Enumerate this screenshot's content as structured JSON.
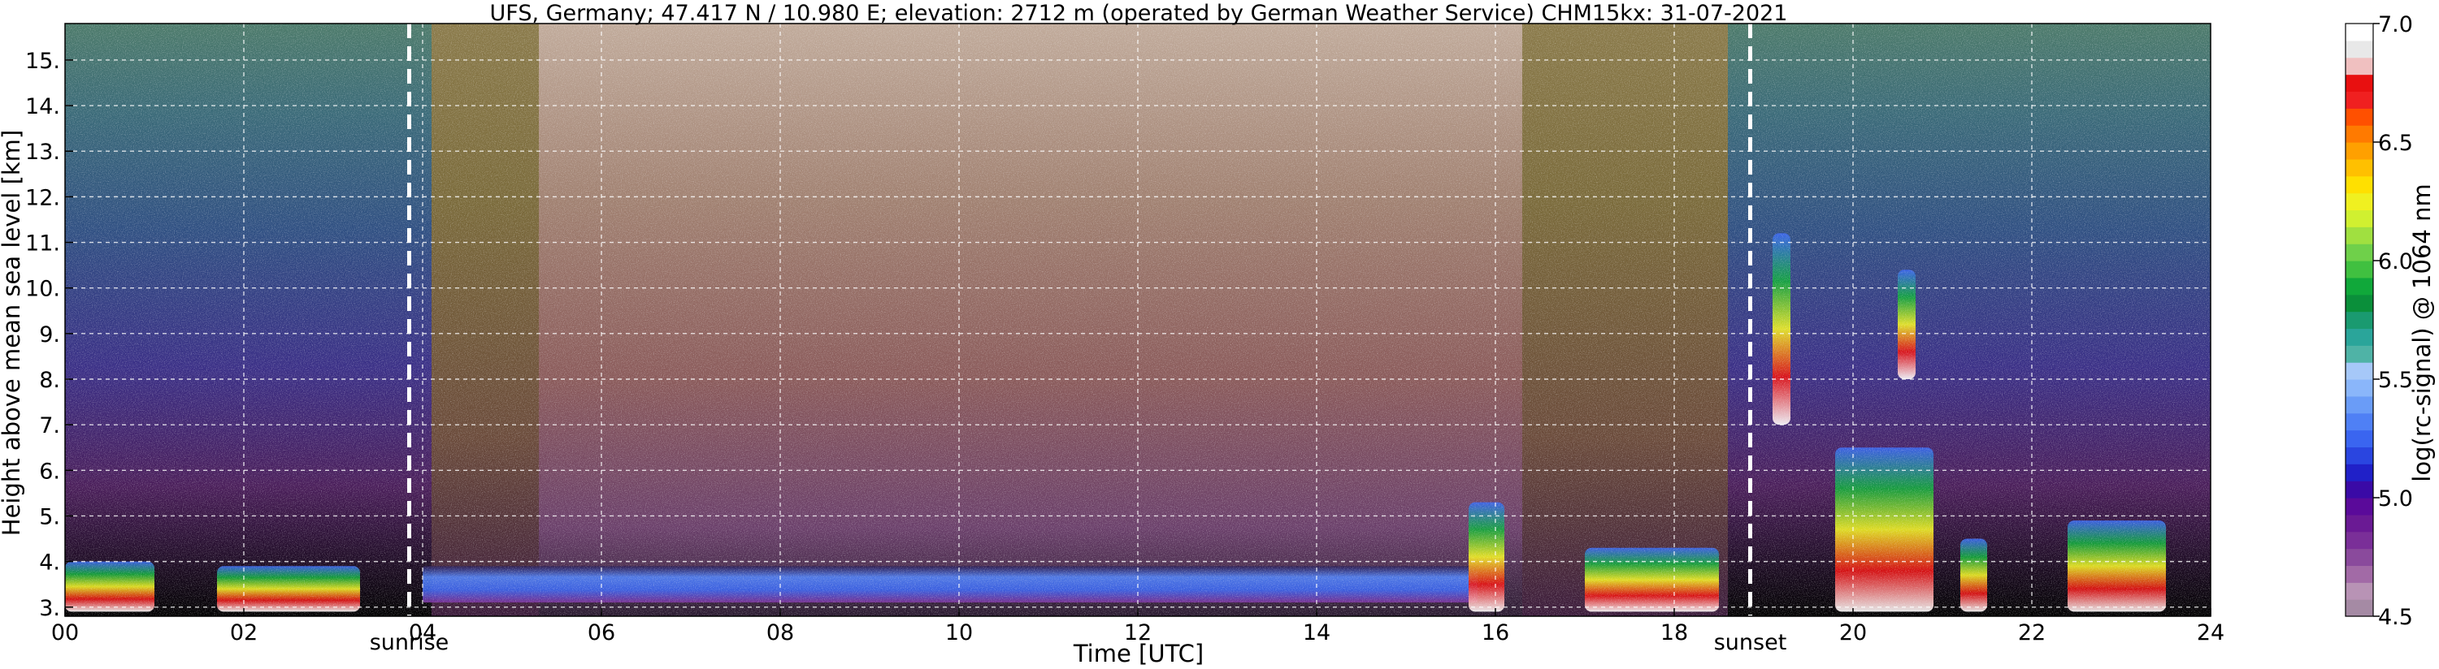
{
  "chart_data": {
    "type": "heatmap",
    "title": "UFS, Germany; 47.417 N / 10.980 E; elevation: 2712 m  (operated by German Weather Service)    CHM15kx: 31-07-2021",
    "xlabel": "Time [UTC]",
    "ylabel": "Height above mean sea level [km]",
    "xlim": [
      0,
      24
    ],
    "ylim": [
      2.8,
      15.8
    ],
    "x_ticks": [
      "00",
      "02",
      "04",
      "06",
      "08",
      "10",
      "12",
      "14",
      "16",
      "18",
      "20",
      "22",
      "24"
    ],
    "x_tick_values": [
      0,
      2,
      4,
      6,
      8,
      10,
      12,
      14,
      16,
      18,
      20,
      22,
      24
    ],
    "y_ticks": [
      "3.",
      "4.",
      "5.",
      "6.",
      "7.",
      "8.",
      "9.",
      "10.",
      "11.",
      "12.",
      "13.",
      "14.",
      "15."
    ],
    "y_tick_values": [
      3,
      4,
      5,
      6,
      7,
      8,
      9,
      10,
      11,
      12,
      13,
      14,
      15
    ],
    "grid": true,
    "events": [
      {
        "label": "sunrise",
        "time": 3.85
      },
      {
        "label": "sunset",
        "time": 18.85
      }
    ],
    "colorbar": {
      "label": "log(rc-signal) @ 1064 nm",
      "range": [
        4.5,
        7.0
      ],
      "ticks": [
        "4.5",
        "5.0",
        "5.5",
        "6.0",
        "6.5",
        "7.0"
      ],
      "tick_values": [
        4.5,
        5.0,
        5.5,
        6.0,
        6.5,
        7.0
      ],
      "colors": [
        "#a58aa4",
        "#b893b5",
        "#a26aa6",
        "#8a4a9c",
        "#7a2f98",
        "#6a1a94",
        "#5a0a9a",
        "#3a0aa6",
        "#2020c8",
        "#2a45e0",
        "#3a65f0",
        "#4f80f5",
        "#6a9cf7",
        "#8ab6fa",
        "#a6c8f8",
        "#4fb3a6",
        "#2aa59a",
        "#1a9a70",
        "#0a8f3a",
        "#10a83a",
        "#40c040",
        "#6fd04a",
        "#a0e040",
        "#d0f030",
        "#f0f020",
        "#ffe000",
        "#ffc000",
        "#ffa000",
        "#ff7a00",
        "#ff5000",
        "#f02020",
        "#e81010",
        "#f0c0c0",
        "#e8e8e8",
        "#ffffff"
      ]
    },
    "features": [
      {
        "kind": "cloud",
        "t0": 0.0,
        "t1": 1.0,
        "h0": 2.9,
        "h1": 4.0
      },
      {
        "kind": "cloud",
        "t0": 1.7,
        "t1": 3.3,
        "h0": 2.9,
        "h1": 3.9
      },
      {
        "kind": "aerosol_layer",
        "t0": 4.0,
        "t1": 15.8,
        "h0": 3.1,
        "h1": 3.9
      },
      {
        "kind": "cloud",
        "t0": 15.7,
        "t1": 16.1,
        "h0": 2.9,
        "h1": 5.3
      },
      {
        "kind": "cloud",
        "t0": 17.0,
        "t1": 18.5,
        "h0": 2.9,
        "h1": 4.3
      },
      {
        "kind": "cloud",
        "t0": 19.1,
        "t1": 19.3,
        "h0": 7.0,
        "h1": 11.2
      },
      {
        "kind": "cloud",
        "t0": 20.5,
        "t1": 20.7,
        "h0": 8.0,
        "h1": 10.4
      },
      {
        "kind": "cloud",
        "t0": 19.8,
        "t1": 20.9,
        "h0": 2.9,
        "h1": 6.5
      },
      {
        "kind": "cloud",
        "t0": 21.2,
        "t1": 21.5,
        "h0": 2.9,
        "h1": 4.5
      },
      {
        "kind": "cloud",
        "t0": 22.4,
        "t1": 23.5,
        "h0": 2.9,
        "h1": 4.9
      }
    ]
  }
}
